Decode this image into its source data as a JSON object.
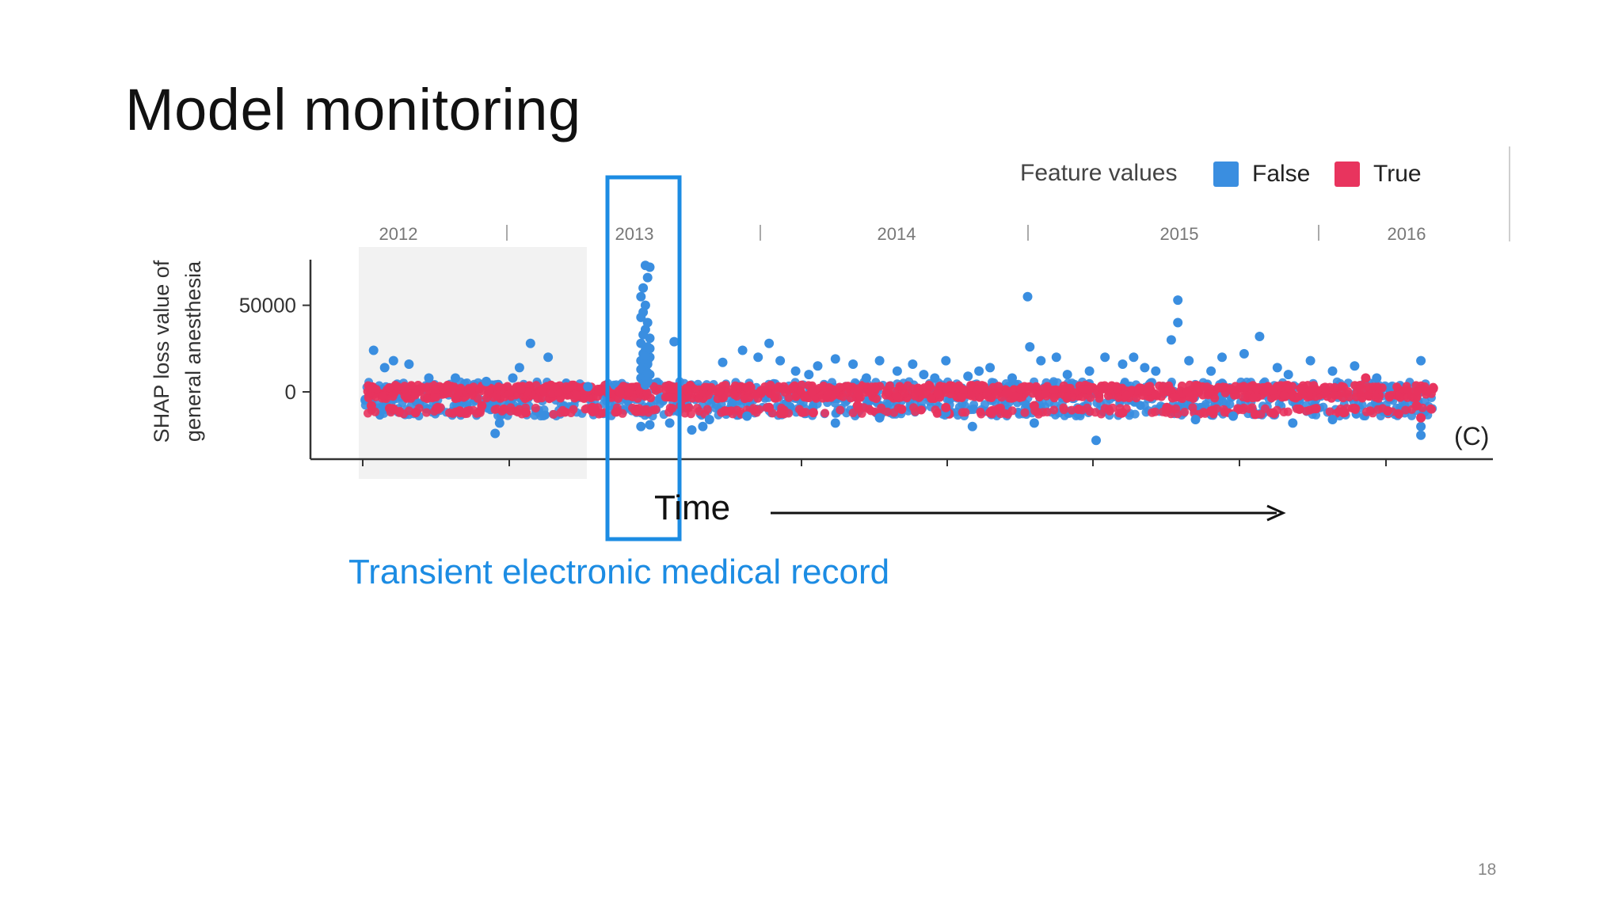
{
  "slide": {
    "title": "Model monitoring",
    "caption": "Transient electronic medical record",
    "time_label": "Time",
    "page_number": "18",
    "panel_tag": "(C)"
  },
  "legend": {
    "title": "Feature values",
    "items": [
      {
        "label": "False",
        "color": "#3a8ee0"
      },
      {
        "label": "True",
        "color": "#e8345e"
      }
    ]
  },
  "colors": {
    "false": "#3a8ee0",
    "true": "#e8345e",
    "highlight_box": "#1c8ce3",
    "caption": "#1c8ce3"
  },
  "chart_data": {
    "type": "scatter",
    "ylabel": "SHAP loss value of general anesthesia",
    "xlabel": "",
    "x_axis_labels": [
      "2012",
      "2013",
      "2014",
      "2015",
      "2016"
    ],
    "y_ticks": [
      0,
      50000
    ],
    "y_tick_labels": [
      "0",
      "50000"
    ],
    "ylim": [
      -32000,
      80000
    ],
    "xlim": [
      2011.55,
      2016.45
    ],
    "grid": false,
    "legend_position": "top-right",
    "shaded_region": [
      2011.55,
      2012.35
    ],
    "highlight_region": [
      2012.78,
      2013.02
    ],
    "series": [
      {
        "name": "False",
        "points": [
          [
            2012.84,
            73000
          ],
          [
            2012.86,
            72000
          ],
          [
            2012.85,
            66000
          ],
          [
            2012.83,
            60000
          ],
          [
            2012.82,
            55000
          ],
          [
            2012.84,
            50000
          ],
          [
            2012.83,
            46000
          ],
          [
            2012.82,
            43000
          ],
          [
            2012.85,
            40000
          ],
          [
            2012.84,
            36000
          ],
          [
            2012.83,
            33000
          ],
          [
            2012.86,
            31000
          ],
          [
            2012.82,
            28000
          ],
          [
            2012.85,
            26000
          ],
          [
            2012.84,
            24000
          ],
          [
            2012.83,
            22000
          ],
          [
            2012.86,
            20000
          ],
          [
            2012.82,
            18000
          ],
          [
            2012.85,
            16000
          ],
          [
            2012.84,
            14000
          ],
          [
            2012.83,
            12000
          ],
          [
            2012.86,
            10000
          ],
          [
            2012.82,
            8000
          ],
          [
            2012.85,
            6000
          ],
          [
            2012.84,
            4000
          ],
          [
            2012.83,
            15000
          ],
          [
            2012.85,
            18000
          ],
          [
            2012.84,
            21000
          ],
          [
            2012.86,
            25000
          ],
          [
            2012.82,
            13000
          ],
          [
            2012.84,
            9000
          ],
          [
            2012.85,
            11000
          ],
          [
            2012.82,
            -20000
          ],
          [
            2012.86,
            -19000
          ],
          [
            2011.61,
            24000
          ],
          [
            2011.66,
            14000
          ],
          [
            2011.7,
            18000
          ],
          [
            2011.77,
            16000
          ],
          [
            2011.86,
            8000
          ],
          [
            2011.98,
            8000
          ],
          [
            2012.12,
            6000
          ],
          [
            2012.24,
            8000
          ],
          [
            2012.27,
            14000
          ],
          [
            2012.32,
            28000
          ],
          [
            2012.4,
            20000
          ],
          [
            2012.58,
            3000
          ],
          [
            2012.16,
            -24000
          ],
          [
            2012.18,
            -18000
          ],
          [
            2012.97,
            29000
          ],
          [
            2013.05,
            -22000
          ],
          [
            2013.1,
            -20000
          ],
          [
            2013.13,
            -16000
          ],
          [
            2013.19,
            17000
          ],
          [
            2013.28,
            24000
          ],
          [
            2013.35,
            20000
          ],
          [
            2013.4,
            28000
          ],
          [
            2013.45,
            18000
          ],
          [
            2013.52,
            12000
          ],
          [
            2013.58,
            10000
          ],
          [
            2013.62,
            15000
          ],
          [
            2013.7,
            19000
          ],
          [
            2013.78,
            16000
          ],
          [
            2013.84,
            8000
          ],
          [
            2013.9,
            18000
          ],
          [
            2013.98,
            12000
          ],
          [
            2014.05,
            16000
          ],
          [
            2014.1,
            10000
          ],
          [
            2014.15,
            8000
          ],
          [
            2014.2,
            18000
          ],
          [
            2014.3,
            9000
          ],
          [
            2014.35,
            12000
          ],
          [
            2014.4,
            14000
          ],
          [
            2014.5,
            8000
          ],
          [
            2014.57,
            55000
          ],
          [
            2014.58,
            26000
          ],
          [
            2014.63,
            18000
          ],
          [
            2014.7,
            20000
          ],
          [
            2014.75,
            10000
          ],
          [
            2014.85,
            12000
          ],
          [
            2014.92,
            20000
          ],
          [
            2015.0,
            16000
          ],
          [
            2015.05,
            20000
          ],
          [
            2015.1,
            14000
          ],
          [
            2015.15,
            12000
          ],
          [
            2015.22,
            30000
          ],
          [
            2015.25,
            53000
          ],
          [
            2015.25,
            40000
          ],
          [
            2015.3,
            18000
          ],
          [
            2015.4,
            12000
          ],
          [
            2015.45,
            20000
          ],
          [
            2015.55,
            22000
          ],
          [
            2015.62,
            32000
          ],
          [
            2015.7,
            14000
          ],
          [
            2015.75,
            10000
          ],
          [
            2015.85,
            18000
          ],
          [
            2015.95,
            12000
          ],
          [
            2016.05,
            15000
          ],
          [
            2016.15,
            8000
          ],
          [
            2016.35,
            18000
          ],
          [
            2013.7,
            -18000
          ],
          [
            2013.9,
            -15000
          ],
          [
            2014.32,
            -20000
          ],
          [
            2014.6,
            -18000
          ],
          [
            2014.88,
            -28000
          ],
          [
            2015.33,
            -16000
          ],
          [
            2015.5,
            -14000
          ],
          [
            2015.77,
            -18000
          ],
          [
            2015.95,
            -16000
          ],
          [
            2016.2,
            -12000
          ],
          [
            2016.35,
            -25000
          ],
          [
            2016.35,
            -20000
          ],
          [
            2012.95,
            -18000
          ],
          [
            2013.3,
            -14000
          ],
          [
            2014.2,
            -12000
          ]
        ]
      },
      {
        "name": "True",
        "points": [
          [
            2011.6,
            -8000
          ],
          [
            2011.7,
            -10000
          ],
          [
            2011.8,
            -12000
          ],
          [
            2011.9,
            -9000
          ],
          [
            2012.0,
            -11000
          ],
          [
            2012.1,
            -8000
          ],
          [
            2012.2,
            -10000
          ],
          [
            2012.3,
            -12000
          ],
          [
            2012.6,
            -9000
          ],
          [
            2012.8,
            -10000
          ],
          [
            2013.0,
            -8000
          ],
          [
            2013.2,
            -11000
          ],
          [
            2013.4,
            -9000
          ],
          [
            2013.6,
            -12000
          ],
          [
            2013.8,
            -8000
          ],
          [
            2014.0,
            -10000
          ],
          [
            2014.2,
            -9000
          ],
          [
            2014.4,
            -12000
          ],
          [
            2014.6,
            -8000
          ],
          [
            2014.8,
            -10000
          ],
          [
            2015.0,
            -12000
          ],
          [
            2015.2,
            -9000
          ],
          [
            2015.4,
            -11000
          ],
          [
            2015.6,
            -13000
          ],
          [
            2015.8,
            -10000
          ],
          [
            2016.0,
            -12000
          ],
          [
            2016.2,
            -11000
          ],
          [
            2016.35,
            -15000
          ],
          [
            2016.1,
            8000
          ],
          [
            2016.33,
            -8000
          ]
        ]
      }
    ]
  }
}
